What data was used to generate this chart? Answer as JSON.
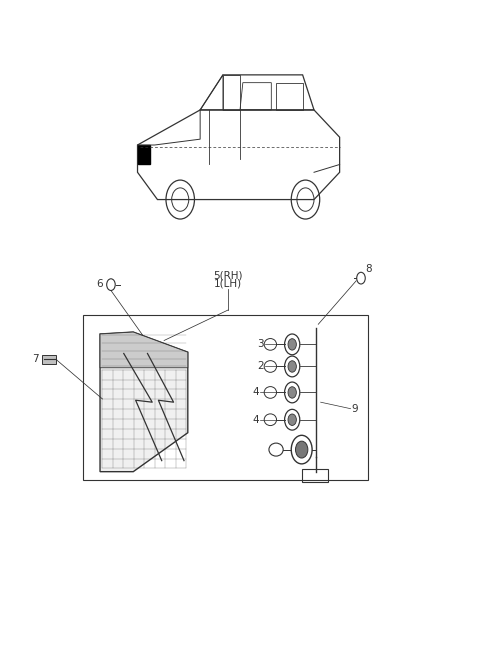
{
  "bg_color": "#ffffff",
  "line_color": "#333333",
  "fig_width": 4.8,
  "fig_height": 6.55,
  "dpi": 100
}
